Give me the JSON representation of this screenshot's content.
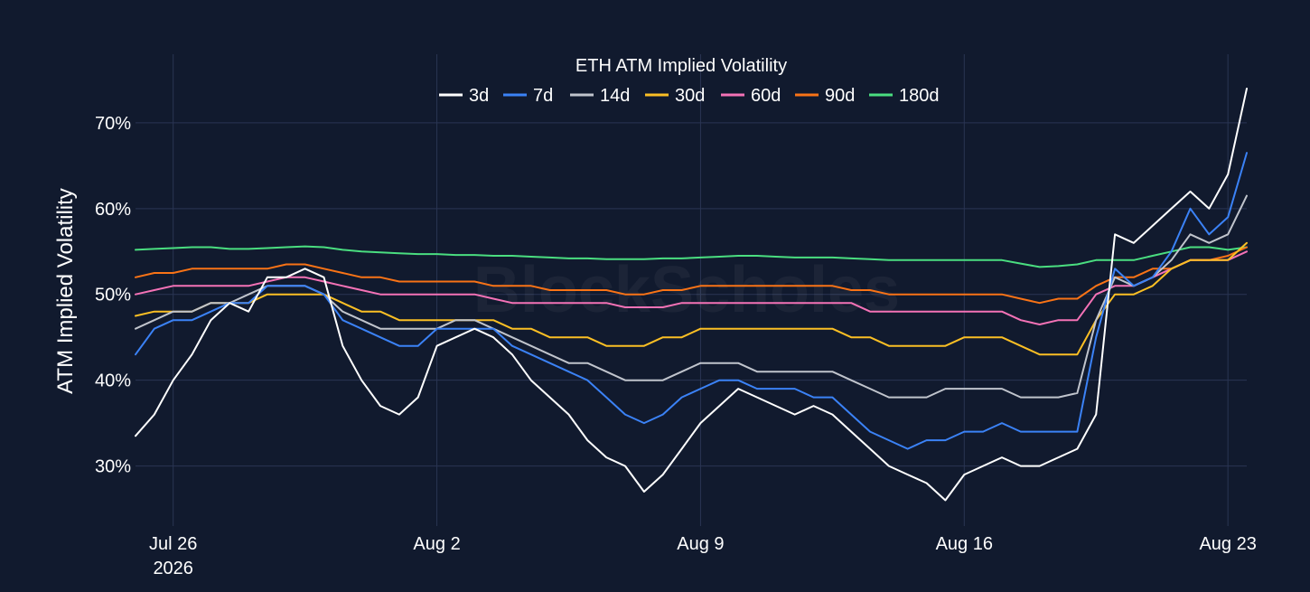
{
  "chart_data": {
    "type": "line",
    "title": "ETH ATM Implied Volatility",
    "xlabel": "",
    "ylabel": "ATM Implied Volatility",
    "watermark": "BlockScholes",
    "xlim": [
      "2026-07-25",
      "2026-08-23 12:00"
    ],
    "ylim": [
      0.23,
      0.78
    ],
    "x_ticks": [
      {
        "date": "2026-07-26",
        "label": "Jul 26",
        "sublabel": "2026"
      },
      {
        "date": "2026-08-02",
        "label": "Aug 2",
        "sublabel": ""
      },
      {
        "date": "2026-08-09",
        "label": "Aug 9",
        "sublabel": ""
      },
      {
        "date": "2026-08-16",
        "label": "Aug 16",
        "sublabel": ""
      },
      {
        "date": "2026-08-23",
        "label": "Aug 23",
        "sublabel": ""
      }
    ],
    "y_ticks": [
      {
        "value": 0.3,
        "label": "30%"
      },
      {
        "value": 0.4,
        "label": "40%"
      },
      {
        "value": 0.5,
        "label": "50%"
      },
      {
        "value": 0.6,
        "label": "60%"
      },
      {
        "value": 0.7,
        "label": "70%"
      }
    ],
    "grid": true,
    "legend_position": "top-center",
    "background": "#111a2e",
    "x": [
      "2026-07-25",
      "2026-07-25 12:00",
      "2026-07-26",
      "2026-07-26 12:00",
      "2026-07-27",
      "2026-07-27 12:00",
      "2026-07-28",
      "2026-07-28 12:00",
      "2026-07-29",
      "2026-07-29 12:00",
      "2026-07-30",
      "2026-07-30 12:00",
      "2026-07-31",
      "2026-07-31 12:00",
      "2026-08-01",
      "2026-08-01 12:00",
      "2026-08-02",
      "2026-08-02 12:00",
      "2026-08-03",
      "2026-08-03 12:00",
      "2026-08-04",
      "2026-08-04 12:00",
      "2026-08-05",
      "2026-08-05 12:00",
      "2026-08-06",
      "2026-08-06 12:00",
      "2026-08-07",
      "2026-08-07 12:00",
      "2026-08-08",
      "2026-08-08 12:00",
      "2026-08-09",
      "2026-08-09 12:00",
      "2026-08-10",
      "2026-08-10 12:00",
      "2026-08-11",
      "2026-08-11 12:00",
      "2026-08-12",
      "2026-08-12 12:00",
      "2026-08-13",
      "2026-08-13 12:00",
      "2026-08-14",
      "2026-08-14 12:00",
      "2026-08-15",
      "2026-08-15 12:00",
      "2026-08-16",
      "2026-08-16 12:00",
      "2026-08-17",
      "2026-08-17 12:00",
      "2026-08-18",
      "2026-08-18 12:00",
      "2026-08-19",
      "2026-08-19 12:00",
      "2026-08-20",
      "2026-08-20 12:00",
      "2026-08-21",
      "2026-08-21 12:00",
      "2026-08-22",
      "2026-08-22 12:00",
      "2026-08-23",
      "2026-08-23 12:00"
    ],
    "series": [
      {
        "name": "3d",
        "color": "#ffffff",
        "values": [
          0.335,
          0.36,
          0.4,
          0.43,
          0.47,
          0.49,
          0.48,
          0.52,
          0.52,
          0.53,
          0.52,
          0.44,
          0.4,
          0.37,
          0.36,
          0.38,
          0.44,
          0.45,
          0.46,
          0.45,
          0.43,
          0.4,
          0.38,
          0.36,
          0.33,
          0.31,
          0.3,
          0.27,
          0.29,
          0.32,
          0.35,
          0.37,
          0.39,
          0.38,
          0.37,
          0.36,
          0.37,
          0.36,
          0.34,
          0.32,
          0.3,
          0.29,
          0.28,
          0.26,
          0.29,
          0.3,
          0.31,
          0.3,
          0.3,
          0.31,
          0.32,
          0.36,
          0.57,
          0.56,
          0.58,
          0.6,
          0.62,
          0.6,
          0.64,
          0.74
        ]
      },
      {
        "name": "7d",
        "color": "#3b82f6",
        "values": [
          0.43,
          0.46,
          0.47,
          0.47,
          0.48,
          0.49,
          0.49,
          0.51,
          0.51,
          0.51,
          0.5,
          0.47,
          0.46,
          0.45,
          0.44,
          0.44,
          0.46,
          0.46,
          0.46,
          0.46,
          0.44,
          0.43,
          0.42,
          0.41,
          0.4,
          0.38,
          0.36,
          0.35,
          0.36,
          0.38,
          0.39,
          0.4,
          0.4,
          0.39,
          0.39,
          0.39,
          0.38,
          0.38,
          0.36,
          0.34,
          0.33,
          0.32,
          0.33,
          0.33,
          0.34,
          0.34,
          0.35,
          0.34,
          0.34,
          0.34,
          0.34,
          0.45,
          0.53,
          0.51,
          0.52,
          0.55,
          0.6,
          0.57,
          0.59,
          0.665
        ]
      },
      {
        "name": "14d",
        "color": "#c0c4cc",
        "values": [
          0.46,
          0.47,
          0.48,
          0.48,
          0.49,
          0.49,
          0.5,
          0.51,
          0.51,
          0.51,
          0.5,
          0.48,
          0.47,
          0.46,
          0.46,
          0.46,
          0.46,
          0.47,
          0.47,
          0.46,
          0.45,
          0.44,
          0.43,
          0.42,
          0.42,
          0.41,
          0.4,
          0.4,
          0.4,
          0.41,
          0.42,
          0.42,
          0.42,
          0.41,
          0.41,
          0.41,
          0.41,
          0.41,
          0.4,
          0.39,
          0.38,
          0.38,
          0.38,
          0.39,
          0.39,
          0.39,
          0.39,
          0.38,
          0.38,
          0.38,
          0.385,
          0.47,
          0.52,
          0.51,
          0.52,
          0.54,
          0.57,
          0.56,
          0.57,
          0.615
        ]
      },
      {
        "name": "30d",
        "color": "#fbbf24",
        "values": [
          0.475,
          0.48,
          0.48,
          0.48,
          0.49,
          0.49,
          0.49,
          0.5,
          0.5,
          0.5,
          0.5,
          0.49,
          0.48,
          0.48,
          0.47,
          0.47,
          0.47,
          0.47,
          0.47,
          0.47,
          0.46,
          0.46,
          0.45,
          0.45,
          0.45,
          0.44,
          0.44,
          0.44,
          0.45,
          0.45,
          0.46,
          0.46,
          0.46,
          0.46,
          0.46,
          0.46,
          0.46,
          0.46,
          0.45,
          0.45,
          0.44,
          0.44,
          0.44,
          0.44,
          0.45,
          0.45,
          0.45,
          0.44,
          0.43,
          0.43,
          0.43,
          0.47,
          0.5,
          0.5,
          0.51,
          0.53,
          0.54,
          0.54,
          0.54,
          0.56
        ]
      },
      {
        "name": "60d",
        "color": "#f472b6",
        "values": [
          0.5,
          0.505,
          0.51,
          0.51,
          0.51,
          0.51,
          0.51,
          0.515,
          0.52,
          0.52,
          0.515,
          0.51,
          0.505,
          0.5,
          0.5,
          0.5,
          0.5,
          0.5,
          0.5,
          0.495,
          0.49,
          0.49,
          0.49,
          0.49,
          0.49,
          0.49,
          0.485,
          0.485,
          0.485,
          0.49,
          0.49,
          0.49,
          0.49,
          0.49,
          0.49,
          0.49,
          0.49,
          0.49,
          0.49,
          0.48,
          0.48,
          0.48,
          0.48,
          0.48,
          0.48,
          0.48,
          0.48,
          0.47,
          0.465,
          0.47,
          0.47,
          0.5,
          0.51,
          0.51,
          0.52,
          0.53,
          0.54,
          0.54,
          0.54,
          0.55
        ]
      },
      {
        "name": "90d",
        "color": "#f97316",
        "values": [
          0.52,
          0.525,
          0.525,
          0.53,
          0.53,
          0.53,
          0.53,
          0.53,
          0.535,
          0.535,
          0.53,
          0.525,
          0.52,
          0.52,
          0.515,
          0.515,
          0.515,
          0.515,
          0.515,
          0.51,
          0.51,
          0.51,
          0.505,
          0.505,
          0.505,
          0.505,
          0.5,
          0.5,
          0.505,
          0.505,
          0.51,
          0.51,
          0.51,
          0.51,
          0.51,
          0.51,
          0.51,
          0.51,
          0.505,
          0.505,
          0.5,
          0.5,
          0.5,
          0.5,
          0.5,
          0.5,
          0.5,
          0.495,
          0.49,
          0.495,
          0.495,
          0.51,
          0.52,
          0.52,
          0.53,
          0.53,
          0.54,
          0.54,
          0.545,
          0.555
        ]
      },
      {
        "name": "180d",
        "color": "#4ade80",
        "values": [
          0.552,
          0.553,
          0.554,
          0.555,
          0.555,
          0.553,
          0.553,
          0.554,
          0.555,
          0.556,
          0.555,
          0.552,
          0.55,
          0.549,
          0.548,
          0.547,
          0.547,
          0.546,
          0.546,
          0.545,
          0.545,
          0.544,
          0.543,
          0.542,
          0.542,
          0.541,
          0.541,
          0.541,
          0.542,
          0.542,
          0.543,
          0.544,
          0.545,
          0.545,
          0.544,
          0.543,
          0.543,
          0.543,
          0.542,
          0.541,
          0.54,
          0.54,
          0.54,
          0.54,
          0.54,
          0.54,
          0.54,
          0.536,
          0.532,
          0.533,
          0.535,
          0.54,
          0.54,
          0.54,
          0.545,
          0.55,
          0.555,
          0.555,
          0.552,
          0.555
        ]
      }
    ]
  }
}
